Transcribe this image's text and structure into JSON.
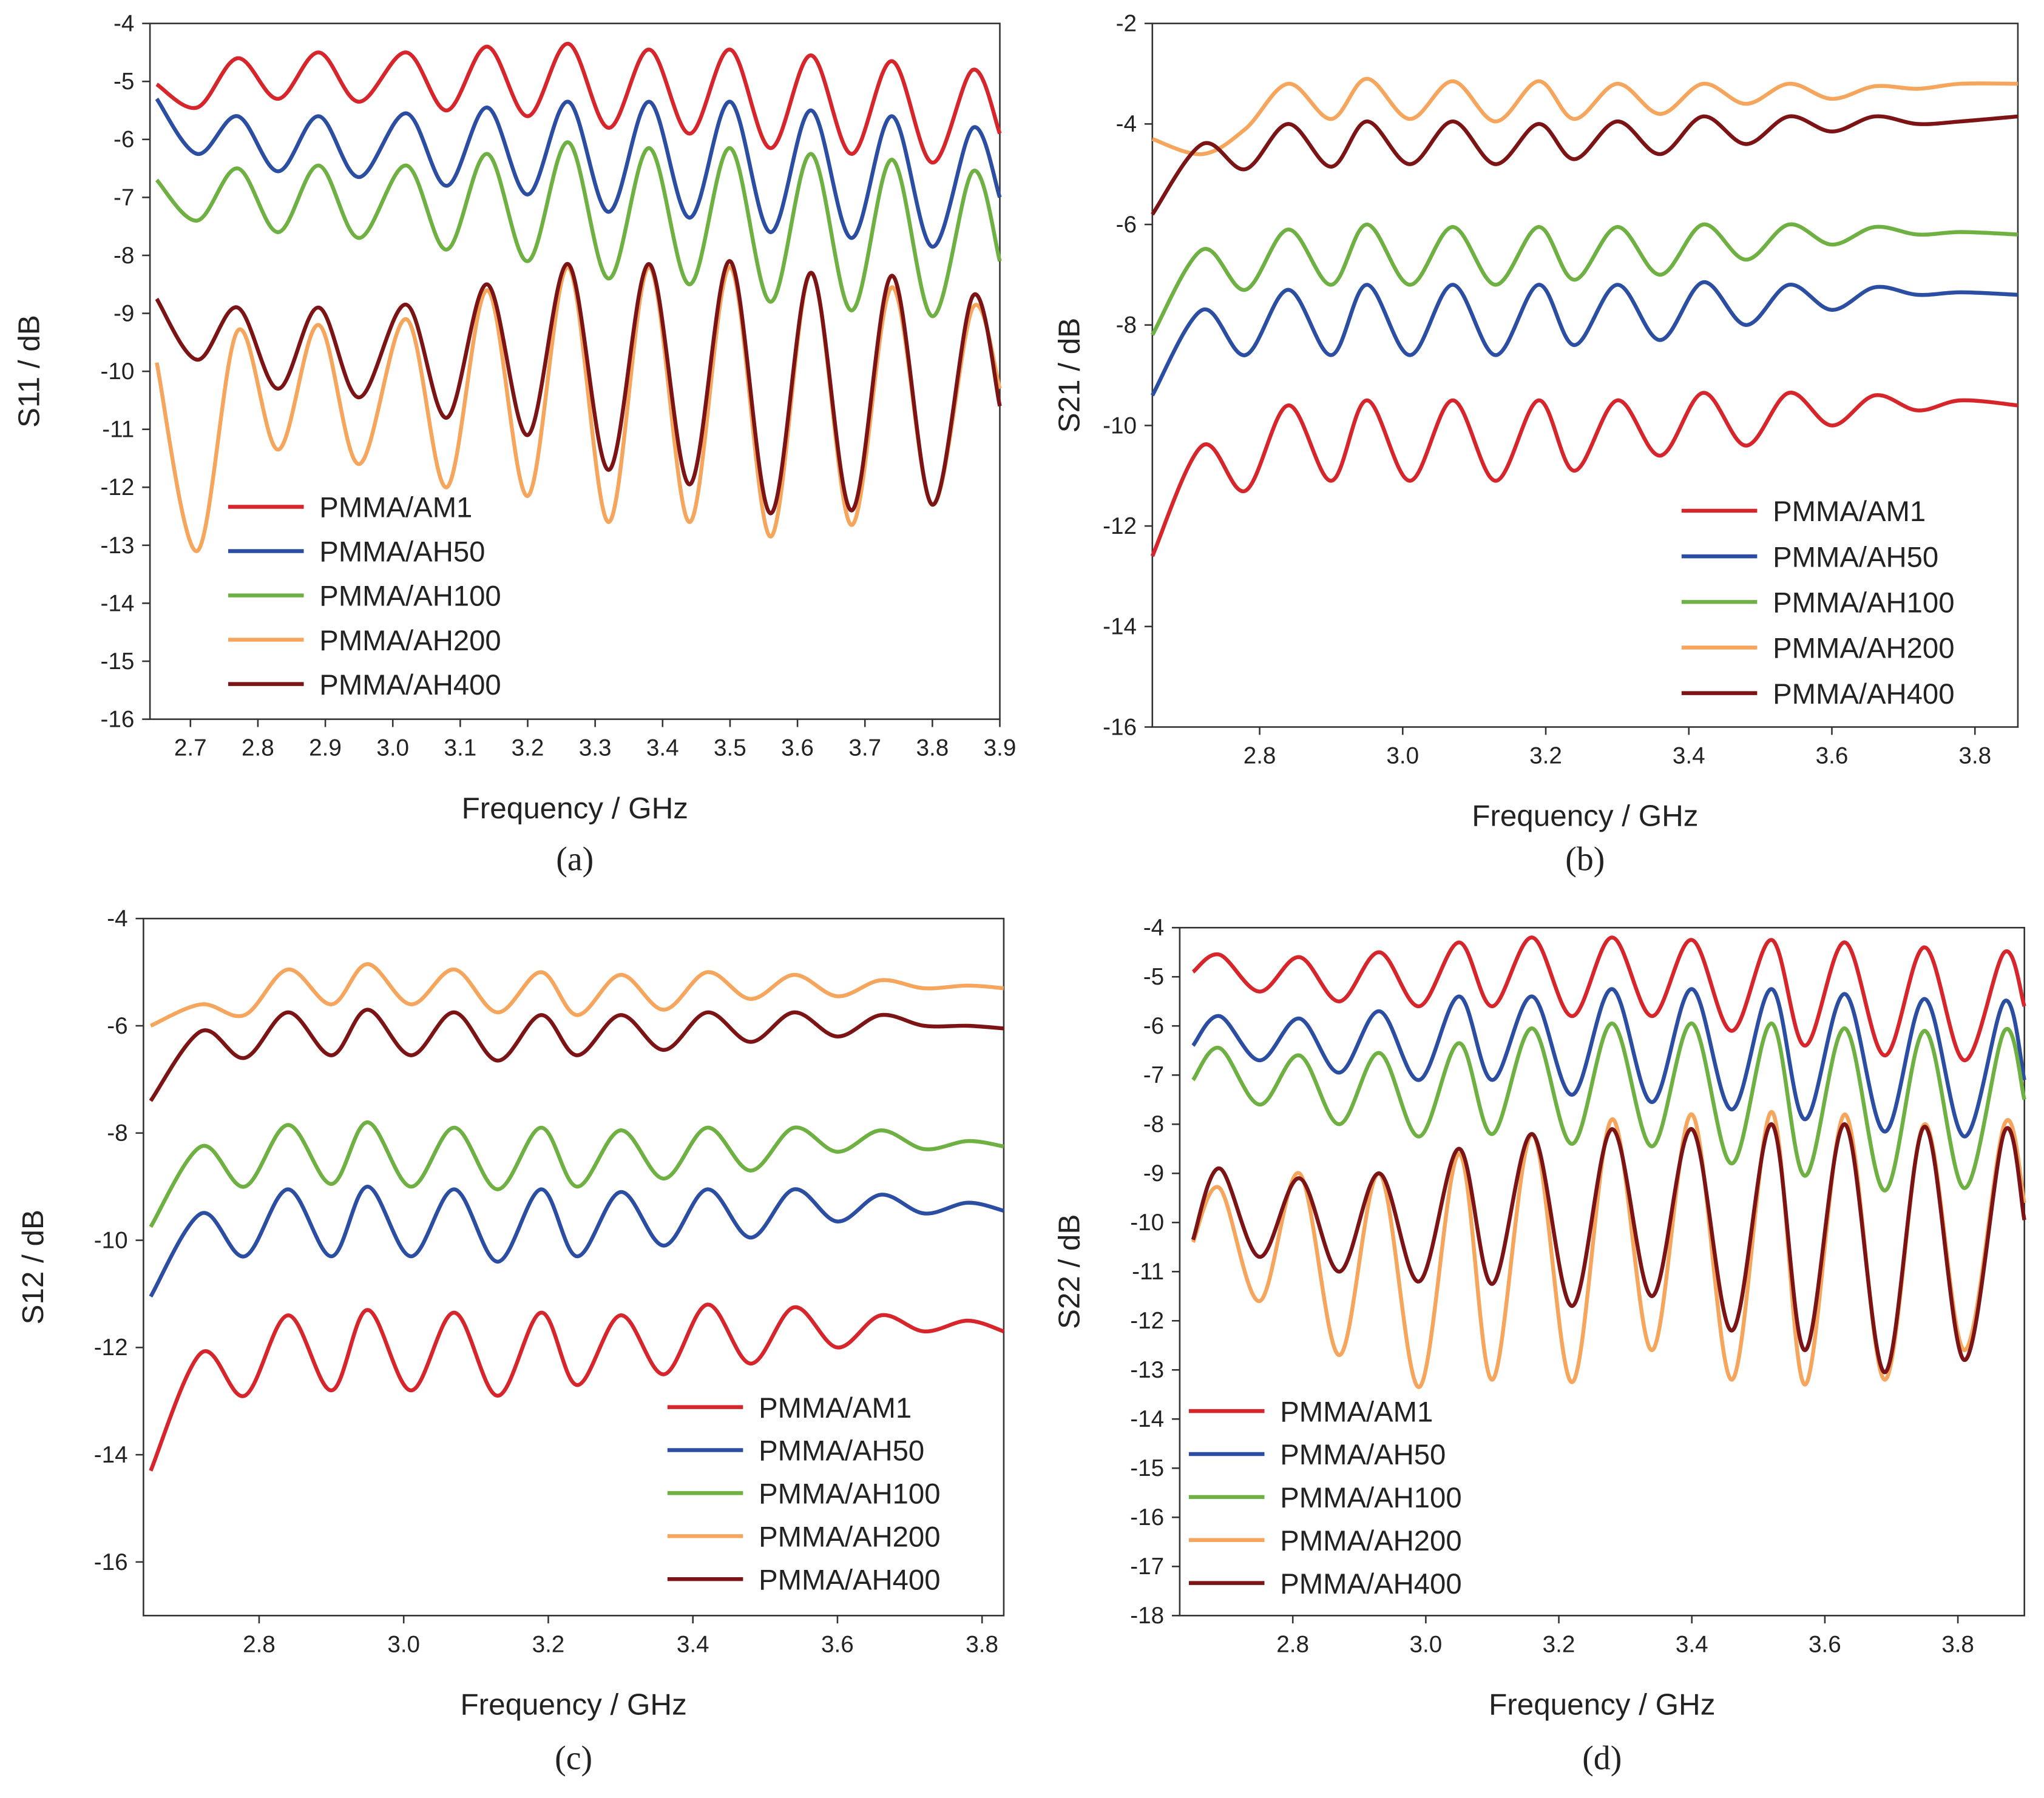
{
  "chart_data": [
    {
      "type": "line",
      "caption": "(a)",
      "xlabel": "Frequency / GHz",
      "ylabel": "S11 / dB",
      "legend": "lower left",
      "xlim": [
        2.64,
        3.9
      ],
      "xticks": [
        2.7,
        2.8,
        2.9,
        {
          "value": 3,
          "label": "3.0"
        },
        3.1,
        3.2,
        3.3,
        3.4,
        3.5,
        3.6,
        3.7,
        3.8,
        3.9
      ],
      "ylim": [
        -16,
        -4
      ],
      "yticks": [
        -16,
        -15,
        -14,
        -13,
        -12,
        -11,
        -10,
        -9,
        -8,
        -7,
        -6,
        -5,
        -4
      ],
      "x": [
        2.65,
        2.71,
        2.77,
        2.83,
        2.89,
        2.95,
        3.02,
        3.08,
        3.14,
        3.2,
        3.26,
        3.32,
        3.38,
        3.44,
        3.5,
        3.56,
        3.62,
        3.68,
        3.74,
        3.8,
        3.86,
        3.9
      ],
      "series": [
        {
          "name": "PMMA/AM1",
          "color": "#d7262b",
          "values": [
            -5.05,
            -5.45,
            -4.6,
            -5.3,
            -4.5,
            -5.35,
            -4.5,
            -5.5,
            -4.4,
            -5.6,
            -4.35,
            -5.8,
            -4.45,
            -5.9,
            -4.45,
            -6.15,
            -4.55,
            -6.25,
            -4.65,
            -6.4,
            -4.8,
            -5.9
          ]
        },
        {
          "name": "PMMA/AH50",
          "color": "#2b4ea3",
          "values": [
            -5.3,
            -6.25,
            -5.6,
            -6.55,
            -5.6,
            -6.65,
            -5.55,
            -6.8,
            -5.45,
            -6.95,
            -5.35,
            -7.25,
            -5.35,
            -7.35,
            -5.35,
            -7.6,
            -5.5,
            -7.7,
            -5.6,
            -7.85,
            -5.8,
            -7.0
          ]
        },
        {
          "name": "PMMA/AH100",
          "color": "#6eb041",
          "values": [
            -6.7,
            -7.4,
            -6.5,
            -7.6,
            -6.45,
            -7.7,
            -6.45,
            -7.9,
            -6.25,
            -8.1,
            -6.05,
            -8.4,
            -6.15,
            -8.5,
            -6.15,
            -8.8,
            -6.25,
            -8.95,
            -6.35,
            -9.05,
            -6.55,
            -8.1
          ]
        },
        {
          "name": "PMMA/AH200",
          "color": "#f5a55c",
          "values": [
            -9.85,
            -13.1,
            -9.3,
            -11.35,
            -9.2,
            -11.6,
            -9.1,
            -12.0,
            -8.6,
            -12.15,
            -8.2,
            -12.6,
            -8.2,
            -12.6,
            -8.2,
            -12.85,
            -8.3,
            -12.65,
            -8.55,
            -12.3,
            -8.9,
            -10.3
          ]
        },
        {
          "name": "PMMA/AH400",
          "color": "#7c1416",
          "values": [
            -8.75,
            -9.8,
            -8.9,
            -10.3,
            -8.9,
            -10.45,
            -8.85,
            -10.8,
            -8.5,
            -11.1,
            -8.15,
            -11.7,
            -8.15,
            -11.95,
            -8.1,
            -12.45,
            -8.3,
            -12.4,
            -8.35,
            -12.3,
            -8.7,
            -10.6
          ]
        }
      ]
    },
    {
      "type": "line",
      "caption": "(b)",
      "xlabel": "Frequency / GHz",
      "ylabel": "S21 / dB",
      "legend": "lower right",
      "xlim": [
        2.65,
        3.86
      ],
      "xticks": [
        2.8,
        {
          "value": 3,
          "label": "3.0"
        },
        3.2,
        3.4,
        3.6,
        3.8
      ],
      "ylim": [
        -16,
        -2
      ],
      "yticks": [
        -16,
        -14,
        -12,
        -10,
        -8,
        -6,
        -4,
        -2
      ],
      "x": [
        2.65,
        2.72,
        2.78,
        2.84,
        2.9,
        2.95,
        3.01,
        3.07,
        3.13,
        3.19,
        3.24,
        3.3,
        3.36,
        3.42,
        3.48,
        3.54,
        3.6,
        3.66,
        3.72,
        3.78,
        3.86
      ],
      "series": [
        {
          "name": "PMMA/AM1",
          "color": "#d7262b",
          "values": [
            -12.6,
            -10.4,
            -11.3,
            -9.6,
            -11.1,
            -9.5,
            -11.1,
            -9.5,
            -11.1,
            -9.5,
            -10.9,
            -9.5,
            -10.6,
            -9.35,
            -10.4,
            -9.35,
            -10.0,
            -9.4,
            -9.7,
            -9.5,
            -9.6
          ]
        },
        {
          "name": "PMMA/AH50",
          "color": "#2b4ea3",
          "values": [
            -9.4,
            -7.7,
            -8.6,
            -7.3,
            -8.6,
            -7.2,
            -8.6,
            -7.2,
            -8.6,
            -7.2,
            -8.4,
            -7.2,
            -8.3,
            -7.15,
            -8.0,
            -7.2,
            -7.7,
            -7.25,
            -7.4,
            -7.35,
            -7.4
          ]
        },
        {
          "name": "PMMA/AH100",
          "color": "#6eb041",
          "values": [
            -8.2,
            -6.5,
            -7.3,
            -6.1,
            -7.2,
            -6.0,
            -7.2,
            -6.05,
            -7.2,
            -6.05,
            -7.1,
            -6.05,
            -7.0,
            -6.0,
            -6.7,
            -6.0,
            -6.4,
            -6.05,
            -6.2,
            -6.15,
            -6.2
          ]
        },
        {
          "name": "PMMA/AH200",
          "color": "#f5a55c",
          "values": [
            -4.3,
            -4.6,
            -4.1,
            -3.2,
            -3.9,
            -3.1,
            -3.9,
            -3.15,
            -3.95,
            -3.15,
            -3.9,
            -3.2,
            -3.8,
            -3.2,
            -3.6,
            -3.2,
            -3.5,
            -3.25,
            -3.3,
            -3.2,
            -3.2
          ]
        },
        {
          "name": "PMMA/AH400",
          "color": "#7c1416",
          "values": [
            -5.8,
            -4.4,
            -4.9,
            -4.0,
            -4.85,
            -3.95,
            -4.8,
            -3.95,
            -4.8,
            -4.0,
            -4.7,
            -3.95,
            -4.6,
            -3.85,
            -4.4,
            -3.85,
            -4.15,
            -3.85,
            -4.0,
            -3.95,
            -3.85
          ]
        }
      ]
    },
    {
      "type": "line",
      "caption": "(c)",
      "xlabel": "Frequency / GHz",
      "ylabel": "S12 / dB",
      "legend": "lower right",
      "xlim": [
        2.64,
        3.83
      ],
      "xticks": [
        2.8,
        {
          "value": 3,
          "label": "3.0"
        },
        3.2,
        3.4,
        3.6,
        3.8
      ],
      "ylim": [
        -17,
        -4
      ],
      "yticks": [
        -16,
        -14,
        -12,
        -10,
        -8,
        -6,
        -4
      ],
      "x": [
        2.65,
        2.72,
        2.78,
        2.84,
        2.9,
        2.95,
        3.01,
        3.07,
        3.13,
        3.19,
        3.24,
        3.3,
        3.36,
        3.42,
        3.48,
        3.54,
        3.6,
        3.66,
        3.72,
        3.78,
        3.83
      ],
      "series": [
        {
          "name": "PMMA/AM1",
          "color": "#d7262b",
          "values": [
            -14.3,
            -12.1,
            -12.9,
            -11.4,
            -12.8,
            -11.3,
            -12.8,
            -11.35,
            -12.9,
            -11.35,
            -12.7,
            -11.4,
            -12.5,
            -11.2,
            -12.3,
            -11.25,
            -12.0,
            -11.4,
            -11.7,
            -11.5,
            -11.7
          ]
        },
        {
          "name": "PMMA/AH50",
          "color": "#2b4ea3",
          "values": [
            -11.05,
            -9.5,
            -10.3,
            -9.05,
            -10.3,
            -9.0,
            -10.3,
            -9.05,
            -10.4,
            -9.05,
            -10.3,
            -9.1,
            -10.1,
            -9.05,
            -9.95,
            -9.05,
            -9.65,
            -9.15,
            -9.5,
            -9.3,
            -9.45
          ]
        },
        {
          "name": "PMMA/AH100",
          "color": "#6eb041",
          "values": [
            -9.75,
            -8.25,
            -9.0,
            -7.85,
            -8.95,
            -7.8,
            -9.0,
            -7.9,
            -9.05,
            -7.9,
            -9.0,
            -7.95,
            -8.85,
            -7.9,
            -8.7,
            -7.9,
            -8.35,
            -7.95,
            -8.3,
            -8.15,
            -8.25
          ]
        },
        {
          "name": "PMMA/AH200",
          "color": "#f5a55c",
          "values": [
            -6.0,
            -5.6,
            -5.8,
            -4.95,
            -5.6,
            -4.85,
            -5.6,
            -4.95,
            -5.75,
            -5.0,
            -5.8,
            -5.05,
            -5.7,
            -5.0,
            -5.5,
            -5.05,
            -5.45,
            -5.15,
            -5.3,
            -5.25,
            -5.3
          ]
        },
        {
          "name": "PMMA/AH400",
          "color": "#7c1416",
          "values": [
            -7.4,
            -6.1,
            -6.6,
            -5.75,
            -6.55,
            -5.7,
            -6.55,
            -5.75,
            -6.65,
            -5.8,
            -6.55,
            -5.8,
            -6.45,
            -5.75,
            -6.3,
            -5.75,
            -6.2,
            -5.8,
            -6.0,
            -6.0,
            -6.05
          ]
        }
      ]
    },
    {
      "type": "line",
      "caption": "(d)",
      "xlabel": "Frequency / GHz",
      "ylabel": "S22 / dB",
      "legend": "lower left",
      "xlim": [
        2.63,
        3.9
      ],
      "xticks": [
        2.8,
        {
          "value": 3,
          "label": "3.0"
        },
        3.2,
        3.4,
        3.6,
        3.8
      ],
      "ylim": [
        -18,
        -4
      ],
      "yticks": [
        -18,
        -17,
        -16,
        -15,
        -14,
        -13,
        -12,
        -11,
        -10,
        -9,
        -8,
        -7,
        -6,
        -5,
        -4
      ],
      "x": [
        2.65,
        2.69,
        2.75,
        2.81,
        2.87,
        2.93,
        2.99,
        3.05,
        3.1,
        3.16,
        3.22,
        3.28,
        3.34,
        3.4,
        3.46,
        3.52,
        3.57,
        3.63,
        3.69,
        3.75,
        3.81,
        3.87,
        3.9
      ],
      "series": [
        {
          "name": "PMMA/AM1",
          "color": "#d7262b",
          "values": [
            -4.9,
            -4.55,
            -5.3,
            -4.6,
            -5.5,
            -4.5,
            -5.6,
            -4.3,
            -5.6,
            -4.2,
            -5.8,
            -4.2,
            -5.8,
            -4.25,
            -6.1,
            -4.25,
            -6.4,
            -4.3,
            -6.6,
            -4.4,
            -6.7,
            -4.5,
            -5.6
          ]
        },
        {
          "name": "PMMA/AH50",
          "color": "#2b4ea3",
          "values": [
            -6.4,
            -5.8,
            -6.7,
            -5.85,
            -6.95,
            -5.7,
            -7.1,
            -5.4,
            -7.1,
            -5.4,
            -7.4,
            -5.25,
            -7.55,
            -5.25,
            -7.7,
            -5.25,
            -7.9,
            -5.35,
            -8.15,
            -5.45,
            -8.25,
            -5.5,
            -7.1
          ]
        },
        {
          "name": "PMMA/AH100",
          "color": "#6eb041",
          "values": [
            -7.1,
            -6.45,
            -7.6,
            -6.6,
            -8.0,
            -6.55,
            -8.25,
            -6.35,
            -8.2,
            -6.05,
            -8.4,
            -5.95,
            -8.45,
            -5.95,
            -8.8,
            -5.95,
            -9.05,
            -6.05,
            -9.35,
            -6.1,
            -9.3,
            -6.1,
            -7.5
          ]
        },
        {
          "name": "PMMA/AH200",
          "color": "#f5a55c",
          "values": [
            -10.4,
            -9.3,
            -11.6,
            -9.0,
            -12.7,
            -9.0,
            -13.35,
            -8.6,
            -13.2,
            -8.2,
            -13.25,
            -7.9,
            -12.6,
            -7.8,
            -13.2,
            -7.75,
            -13.3,
            -7.8,
            -13.2,
            -8.0,
            -12.6,
            -8.0,
            -9.6
          ]
        },
        {
          "name": "PMMA/AH400",
          "color": "#7c1416",
          "values": [
            -10.35,
            -8.9,
            -10.7,
            -9.1,
            -11.0,
            -9.0,
            -11.2,
            -8.5,
            -11.25,
            -8.2,
            -11.7,
            -8.1,
            -11.5,
            -8.1,
            -12.2,
            -8.0,
            -12.6,
            -8.0,
            -13.05,
            -8.05,
            -12.8,
            -8.15,
            -9.95
          ]
        }
      ]
    }
  ]
}
